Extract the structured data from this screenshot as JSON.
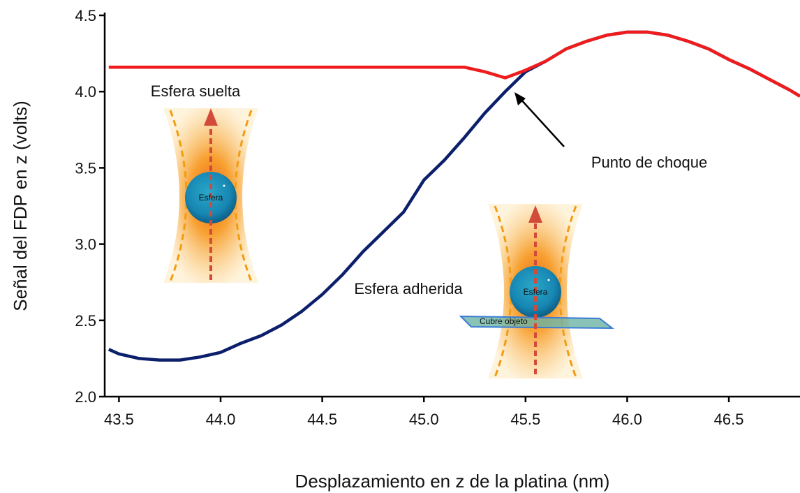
{
  "chart_data": {
    "type": "line",
    "x_label": "Desplazamiento en z de la platina (nm)",
    "y_label": "Señal del FDP en z (volts)",
    "annotations": [
      "Esfera suelta",
      "Punto de choque",
      "Esfera adherida",
      "Esfera",
      "Esfera",
      "Cubre objeto"
    ],
    "x": [
      43.45,
      43.5,
      43.6,
      43.7,
      43.8,
      43.9,
      44.0,
      44.1,
      44.2,
      44.3,
      44.4,
      44.5,
      44.6,
      44.7,
      44.8,
      44.9,
      45.0,
      45.1,
      45.2,
      45.3,
      45.4,
      45.5,
      45.6,
      45.7,
      45.8,
      45.9,
      46.0,
      46.1,
      46.2,
      46.3,
      46.4,
      46.5,
      46.6,
      46.7,
      46.8,
      46.85
    ],
    "series": [
      {
        "name": "Esfera adherida",
        "color": "#0b1f6b",
        "values": [
          2.31,
          2.28,
          2.25,
          2.24,
          2.24,
          2.26,
          2.29,
          2.35,
          2.4,
          2.47,
          2.56,
          2.67,
          2.8,
          2.95,
          3.08,
          3.21,
          3.42,
          3.55,
          3.7,
          3.86,
          4.0,
          4.13,
          4.2,
          4.28,
          4.33,
          4.37,
          4.39,
          4.39,
          4.37,
          4.33,
          4.28,
          4.21,
          4.15,
          4.08,
          4.01,
          3.97
        ]
      },
      {
        "name": "Esfera suelta",
        "color": "#ee1c1c",
        "values": [
          4.16,
          4.16,
          4.16,
          4.16,
          4.16,
          4.16,
          4.16,
          4.16,
          4.16,
          4.16,
          4.16,
          4.16,
          4.16,
          4.16,
          4.16,
          4.16,
          4.16,
          4.16,
          4.16,
          4.13,
          4.09,
          4.14,
          4.2,
          4.28,
          4.33,
          4.37,
          4.39,
          4.39,
          4.37,
          4.33,
          4.28,
          4.21,
          4.15,
          4.08,
          4.01,
          3.97
        ]
      }
    ],
    "xlim": [
      43.43,
      46.85
    ],
    "ylim": [
      2.0,
      4.5
    ],
    "xticks": [
      43.5,
      {
        "value": 44,
        "label": "44.0"
      },
      44.5,
      {
        "value": 45,
        "label": "45.0"
      },
      45.5,
      {
        "value": 46,
        "label": "46.0"
      },
      46.5
    ],
    "yticks": [
      {
        "value": 2,
        "label": "2.0"
      },
      2.5,
      {
        "value": 3,
        "label": "3.0"
      },
      3.5,
      {
        "value": 4,
        "label": "4.0"
      },
      4.5
    ],
    "grid": false
  }
}
